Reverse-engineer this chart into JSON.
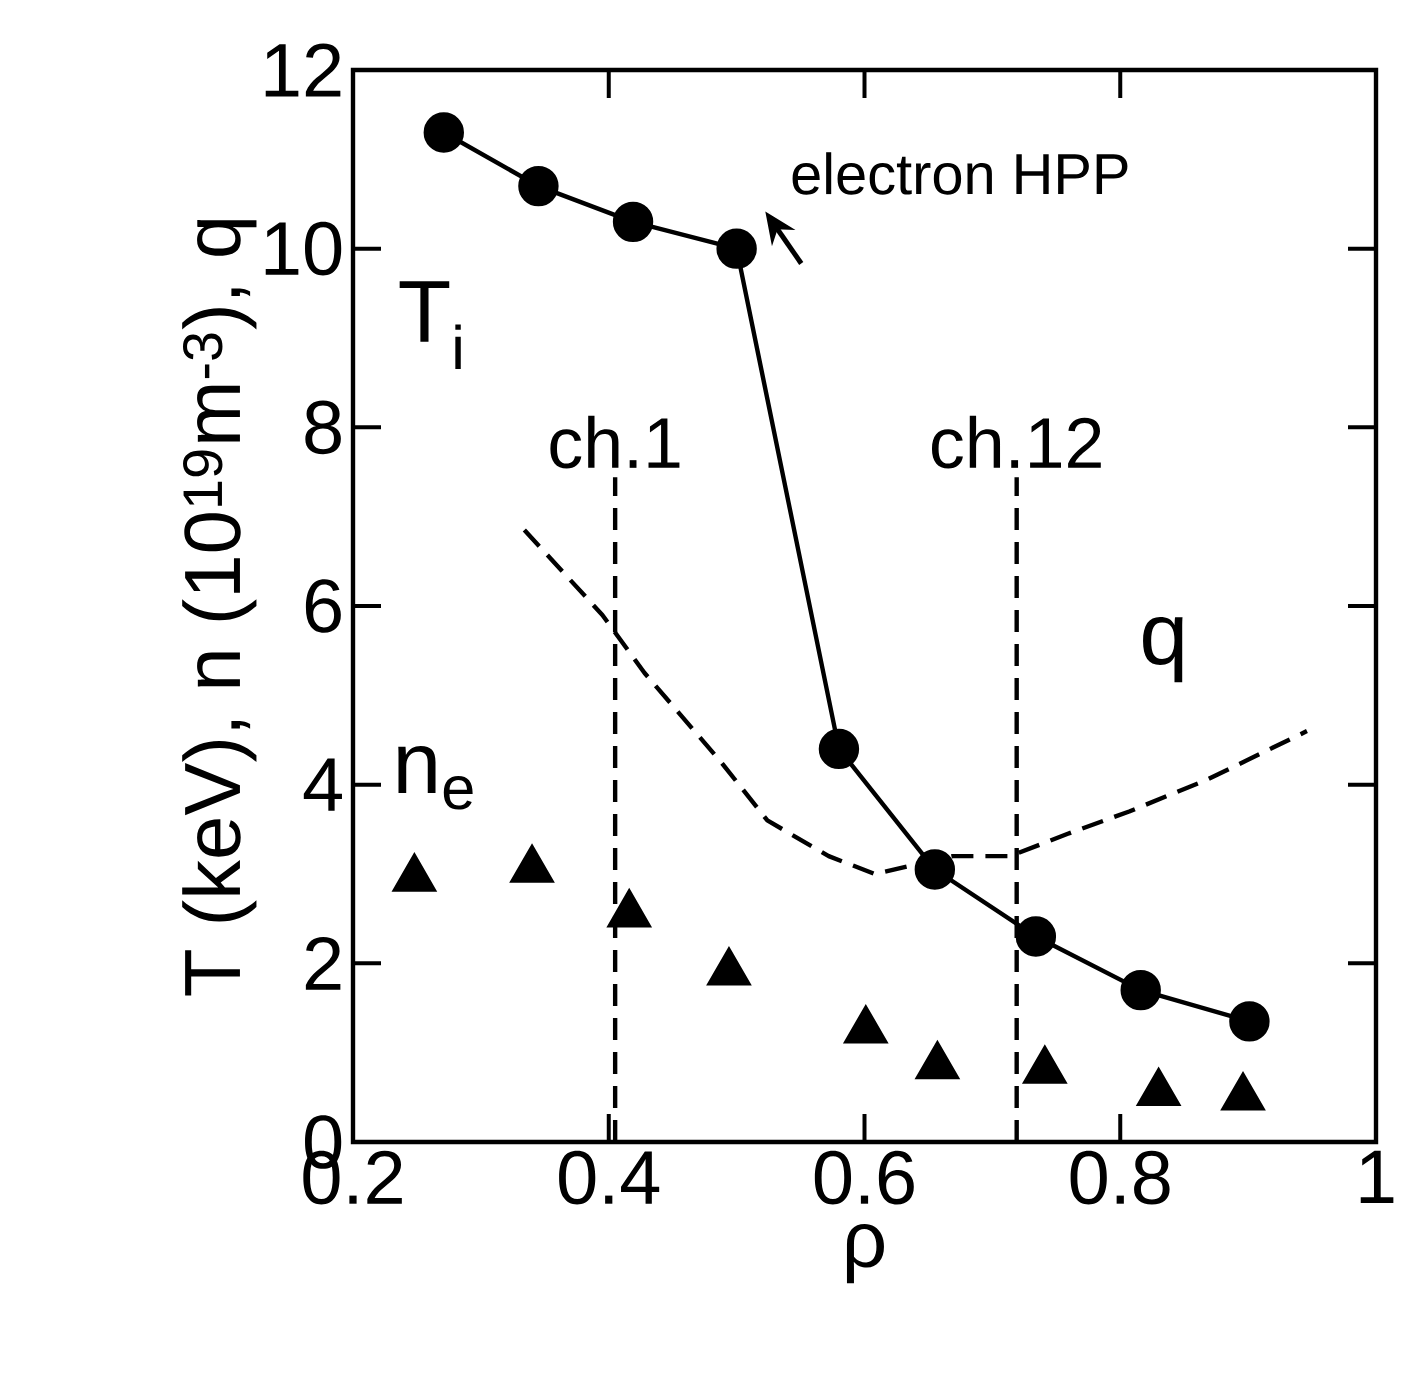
{
  "chart_data": {
    "type": "line",
    "xlabel": "ρ",
    "ylabel": "T (keV), n (10$^{19}$m$^{-3}$), q",
    "xlim": [
      0.2,
      1
    ],
    "xticks": [
      0.2,
      0.4,
      0.6,
      0.8,
      1
    ],
    "ylim": [
      0,
      12
    ],
    "yticks": [
      0,
      2,
      4,
      6,
      8,
      10,
      12
    ],
    "grid": false,
    "series": [
      {
        "name": "T$_{i}$",
        "color": "#000000",
        "marker": "circle",
        "line_style": "solid",
        "x": [
          0.271,
          0.345,
          0.419,
          0.5,
          0.58,
          0.655,
          0.734,
          0.816,
          0.901
        ],
        "values": [
          11.3,
          10.7,
          10.3,
          10.0,
          4.4,
          3.05,
          2.3,
          1.7,
          1.35
        ]
      },
      {
        "name": "n$_{e}$",
        "type": "scatter",
        "color": "#000000",
        "marker": "triangle",
        "x": [
          0.248,
          0.34,
          0.416,
          0.494,
          0.601,
          0.657,
          0.741,
          0.83,
          0.896
        ],
        "values": [
          2.95,
          3.05,
          2.55,
          1.9,
          1.25,
          0.85,
          0.8,
          0.55,
          0.5
        ]
      },
      {
        "name": "q",
        "type": "line",
        "color": "#000000",
        "marker": "none",
        "line_style": "dashed",
        "x": [
          0.334,
          0.395,
          0.428,
          0.488,
          0.524,
          0.572,
          0.608,
          0.669,
          0.714,
          0.759,
          0.807,
          0.867,
          0.946
        ],
        "values": [
          6.85,
          5.9,
          5.25,
          4.25,
          3.6,
          3.2,
          3.0,
          3.2,
          3.2,
          3.45,
          3.7,
          4.05,
          4.6
        ]
      }
    ],
    "ref_lines": [
      {
        "axis": "x",
        "value": 0.405,
        "label": "ch.1",
        "line_style": "dashed"
      },
      {
        "axis": "x",
        "value": 0.719,
        "label": "ch.12",
        "line_style": "dashed"
      }
    ],
    "annotations": [
      "electron HPP"
    ]
  }
}
